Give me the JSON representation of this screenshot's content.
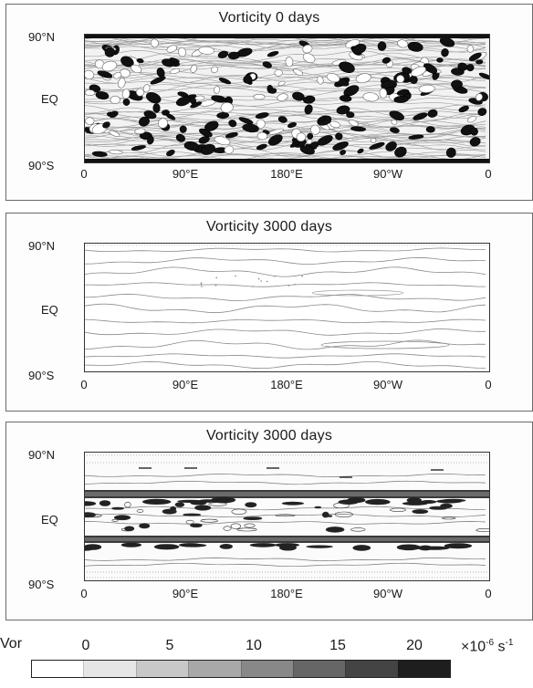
{
  "panels": [
    {
      "title": "Vorticity   0 days",
      "y_labels": [
        "90°N",
        "EQ",
        "90°S"
      ],
      "x_labels": [
        "0",
        "90°E",
        "180°E",
        "90°W",
        "0"
      ],
      "pattern": "random-blobs"
    },
    {
      "title": "Vorticity   3000 days",
      "y_labels": [
        "90°N",
        "EQ",
        "90°S"
      ],
      "x_labels": [
        "0",
        "90°E",
        "180°E",
        "90°W",
        "0"
      ],
      "pattern": "zonal-contours"
    },
    {
      "title": "Vorticity   3000 days",
      "y_labels": [
        "90°N",
        "EQ",
        "90°S"
      ],
      "x_labels": [
        "0",
        "90°E",
        "180°E",
        "90°W",
        "0"
      ],
      "pattern": "zonal-jets"
    }
  ],
  "colorbar": {
    "label": "Vor",
    "ticks": [
      "0",
      "5",
      "10",
      "15",
      "20"
    ],
    "unit_prefix": "×10",
    "unit_exponent": "-6",
    "unit_suffix": " s",
    "shades": [
      "#ffffff",
      "#e6e6e6",
      "#c8c8c8",
      "#a8a8a8",
      "#888888",
      "#666666",
      "#444444",
      "#1e1e1e"
    ]
  }
}
